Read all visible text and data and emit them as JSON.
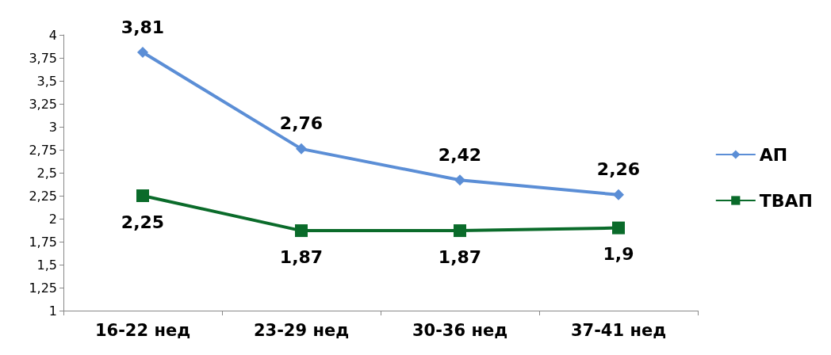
{
  "chart_data": {
    "type": "line",
    "categories": [
      "16-22 нед",
      "23-29 нед",
      "30-36 нед",
      "37-41 нед"
    ],
    "series": [
      {
        "name": "АП",
        "color": "#5b8ed6",
        "marker": "diamond",
        "values": [
          3.81,
          2.76,
          2.42,
          2.26
        ],
        "value_labels": [
          "3,81",
          "2,76",
          "2,42",
          "2,26"
        ]
      },
      {
        "name": "ТВАП",
        "color": "#0a6b2a",
        "marker": "square",
        "values": [
          2.25,
          1.87,
          1.87,
          1.9
        ],
        "value_labels": [
          "2,25",
          "1,87",
          "1,87",
          "1,9"
        ]
      }
    ],
    "ylim": [
      1,
      4
    ],
    "yticks": [
      1,
      {
        "value": 1.25,
        "label": "1,25"
      },
      {
        "value": 1.5,
        "label": "1,5"
      },
      {
        "value": 1.75,
        "label": "1,75"
      },
      2,
      {
        "value": 2.25,
        "label": "2,25"
      },
      {
        "value": 2.5,
        "label": "2,5"
      },
      {
        "value": 2.75,
        "label": "2,75"
      },
      3,
      {
        "value": 3.25,
        "label": "3,25"
      },
      {
        "value": 3.5,
        "label": "3,5"
      },
      {
        "value": 3.75,
        "label": "3,75"
      },
      4
    ],
    "grid": false,
    "legend": "right",
    "line_style": "solid"
  }
}
